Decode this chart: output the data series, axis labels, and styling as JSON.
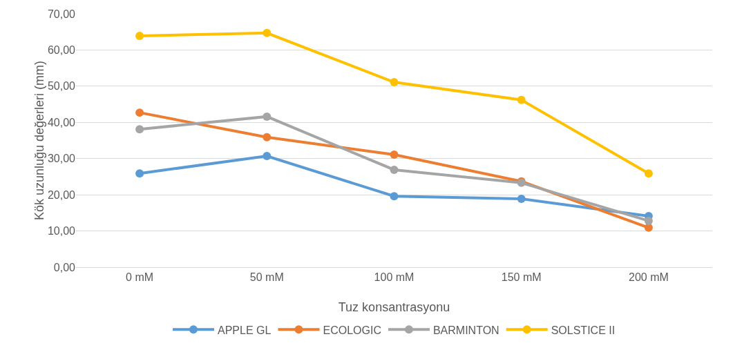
{
  "chart_data": {
    "type": "line",
    "xlabel": "Tuz konsantrasyonu",
    "ylabel": "Kök uzunluğu değerleri (mm)",
    "categories": [
      "0 mM",
      "50 mM",
      "100 mM",
      "150 mM",
      "200 mM"
    ],
    "series": [
      {
        "name": "APPLE GL",
        "color": "#5b9bd5",
        "values": [
          25.9,
          30.7,
          19.6,
          18.9,
          14.1
        ]
      },
      {
        "name": "ECOLOGIC",
        "color": "#ed7d31",
        "values": [
          42.7,
          35.9,
          31.1,
          23.7,
          10.9
        ]
      },
      {
        "name": "BARMINTON",
        "color": "#a5a5a5",
        "values": [
          38.1,
          41.6,
          26.9,
          23.3,
          12.8
        ]
      },
      {
        "name": "SOLSTICE II",
        "color": "#ffc000",
        "values": [
          63.9,
          64.7,
          51.1,
          46.2,
          25.9
        ]
      }
    ],
    "ylim": [
      0,
      70
    ],
    "yticks": [
      {
        "value": 0,
        "label": "0,00"
      },
      {
        "value": 10,
        "label": "10,00"
      },
      {
        "value": 20,
        "label": "20,00"
      },
      {
        "value": 30,
        "label": "30,00"
      },
      {
        "value": 40,
        "label": "40,00"
      },
      {
        "value": 50,
        "label": "50,00"
      },
      {
        "value": 60,
        "label": "60,00"
      },
      {
        "value": 70,
        "label": "70,00"
      }
    ],
    "grid": "y",
    "legend": "bottom",
    "marker": "circle",
    "line_style": "solid"
  }
}
